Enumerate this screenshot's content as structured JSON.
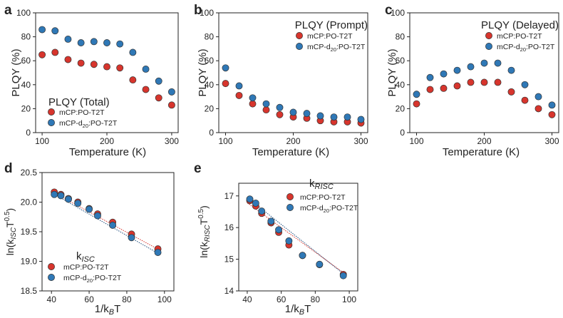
{
  "figure": {
    "panels": [
      "a",
      "b",
      "c",
      "d",
      "e"
    ]
  },
  "colors": {
    "red": "#d7352d",
    "blue": "#2f78b6",
    "axis": "#222222"
  },
  "chart_data": [
    {
      "panel": "a",
      "type": "scatter",
      "title": "PLQY (Total)",
      "xlabel": "Temperature (K)",
      "ylabel": "PLQY (%)",
      "xlim": [
        90,
        310
      ],
      "ylim": [
        0,
        100
      ],
      "xticks": [
        100,
        200,
        300
      ],
      "yticks": [
        0,
        20,
        40,
        60,
        80,
        100
      ],
      "legend_position": "lower-left",
      "series": [
        {
          "name": "mCP:PO-T2T",
          "color": "#d7352d",
          "x": [
            100,
            120,
            140,
            160,
            180,
            200,
            220,
            240,
            260,
            280,
            300
          ],
          "y": [
            65,
            67,
            61,
            58,
            57,
            55,
            54,
            44,
            36,
            29,
            23
          ]
        },
        {
          "name": "mCP-d20:PO-T2T",
          "color": "#2f78b6",
          "x": [
            100,
            120,
            140,
            160,
            180,
            200,
            220,
            240,
            260,
            280,
            300
          ],
          "y": [
            86,
            85,
            78,
            75,
            76,
            75,
            74,
            67,
            53,
            43,
            34
          ]
        }
      ]
    },
    {
      "panel": "b",
      "type": "scatter",
      "title": "PLQY (Prompt)",
      "xlabel": "Temperature (K)",
      "ylabel": "PLQY (%)",
      "xlim": [
        90,
        310
      ],
      "ylim": [
        0,
        100
      ],
      "xticks": [
        100,
        200,
        300
      ],
      "yticks": [
        0,
        20,
        40,
        60,
        80,
        100
      ],
      "legend_position": "upper-right",
      "series": [
        {
          "name": "mCP:PO-T2T",
          "color": "#d7352d",
          "x": [
            100,
            120,
            140,
            160,
            180,
            200,
            220,
            240,
            260,
            280,
            300
          ],
          "y": [
            41,
            31,
            24,
            19,
            15,
            13,
            12,
            10,
            9,
            9,
            8
          ]
        },
        {
          "name": "mCP-d20:PO-T2T",
          "color": "#2f78b6",
          "x": [
            100,
            120,
            140,
            160,
            180,
            200,
            220,
            240,
            260,
            280,
            300
          ],
          "y": [
            54,
            39,
            29,
            24,
            21,
            17,
            16,
            14,
            13,
            13,
            11
          ]
        }
      ]
    },
    {
      "panel": "c",
      "type": "scatter",
      "title": "PLQY (Delayed)",
      "xlabel": "Temperature (K)",
      "ylabel": "PLQY (%)",
      "xlim": [
        90,
        310
      ],
      "ylim": [
        0,
        100
      ],
      "xticks": [
        100,
        200,
        300
      ],
      "yticks": [
        0,
        20,
        40,
        60,
        80,
        100
      ],
      "legend_position": "upper-right",
      "series": [
        {
          "name": "mCP:PO-T2T",
          "color": "#d7352d",
          "x": [
            100,
            120,
            140,
            160,
            180,
            200,
            220,
            240,
            260,
            280,
            300
          ],
          "y": [
            24,
            36,
            37,
            39,
            42,
            42,
            42,
            34,
            27,
            20,
            15
          ]
        },
        {
          "name": "mCP-d20:PO-T2T",
          "color": "#2f78b6",
          "x": [
            100,
            120,
            140,
            160,
            180,
            200,
            220,
            240,
            260,
            280,
            300
          ],
          "y": [
            32,
            46,
            49,
            52,
            55,
            58,
            58,
            52,
            40,
            30,
            23
          ]
        }
      ]
    },
    {
      "panel": "d",
      "type": "scatter",
      "title": "kISC",
      "xlabel": "1/kBT",
      "ylabel": "ln(kISCT0.5)",
      "xlim": [
        35,
        105
      ],
      "ylim": [
        18.5,
        20.5
      ],
      "xticks": [
        40,
        60,
        80,
        100
      ],
      "yticks": [
        18.5,
        19.0,
        19.5,
        20.0,
        20.5
      ],
      "legend_position": "lower-left",
      "series": [
        {
          "name": "mCP:PO-T2T",
          "color": "#d7352d",
          "x": [
            41.5,
            45,
            49,
            54,
            60,
            64.5,
            72.5,
            82.5,
            96.5
          ],
          "y": [
            20.17,
            20.13,
            20.06,
            20.0,
            19.89,
            19.8,
            19.66,
            19.46,
            19.21
          ],
          "fit": {
            "x": [
              40,
              98
            ],
            "y": [
              20.18,
              19.18
            ],
            "style": "dotted"
          }
        },
        {
          "name": "mCP-d20:PO-T2T",
          "color": "#2f78b6",
          "x": [
            41.5,
            45,
            49,
            54,
            60,
            64.5,
            72.5,
            82.5,
            96.5
          ],
          "y": [
            20.13,
            20.11,
            20.05,
            19.98,
            19.88,
            19.77,
            19.61,
            19.4,
            19.15
          ],
          "fit": {
            "x": [
              40,
              98
            ],
            "y": [
              20.16,
              19.11
            ],
            "style": "dotted"
          }
        }
      ]
    },
    {
      "panel": "e",
      "type": "scatter",
      "title": "kRISC",
      "xlabel": "1/kBT",
      "ylabel": "ln(kRISCT0.5)",
      "xlim": [
        35,
        105
      ],
      "ylim": [
        14,
        17.4
      ],
      "xticks": [
        40,
        60,
        80,
        100
      ],
      "yticks": [
        14,
        15,
        16,
        17
      ],
      "legend_position": "upper-right",
      "series": [
        {
          "name": "mCP:PO-T2T",
          "color": "#d7352d",
          "x": [
            41.5,
            45,
            48.5,
            54,
            58.5,
            64.5,
            72.5,
            82.5,
            96.5
          ],
          "y": [
            16.85,
            16.68,
            16.45,
            16.15,
            15.85,
            15.45,
            15.12,
            14.83,
            14.52
          ],
          "fit": {
            "x": [
              40,
              98
            ],
            "y": [
              16.78,
              14.52
            ],
            "style": "dotted"
          }
        },
        {
          "name": "mCP-d20:PO-T2T",
          "color": "#2f78b6",
          "x": [
            41.5,
            45,
            48.5,
            54,
            58.5,
            64.5,
            72.5,
            82.5,
            96.5
          ],
          "y": [
            16.9,
            16.77,
            16.52,
            16.2,
            15.93,
            15.58,
            15.12,
            14.84,
            14.48
          ],
          "fit": {
            "x": [
              40,
              98
            ],
            "y": [
              16.95,
              14.48
            ],
            "style": "dotted"
          }
        }
      ]
    }
  ]
}
